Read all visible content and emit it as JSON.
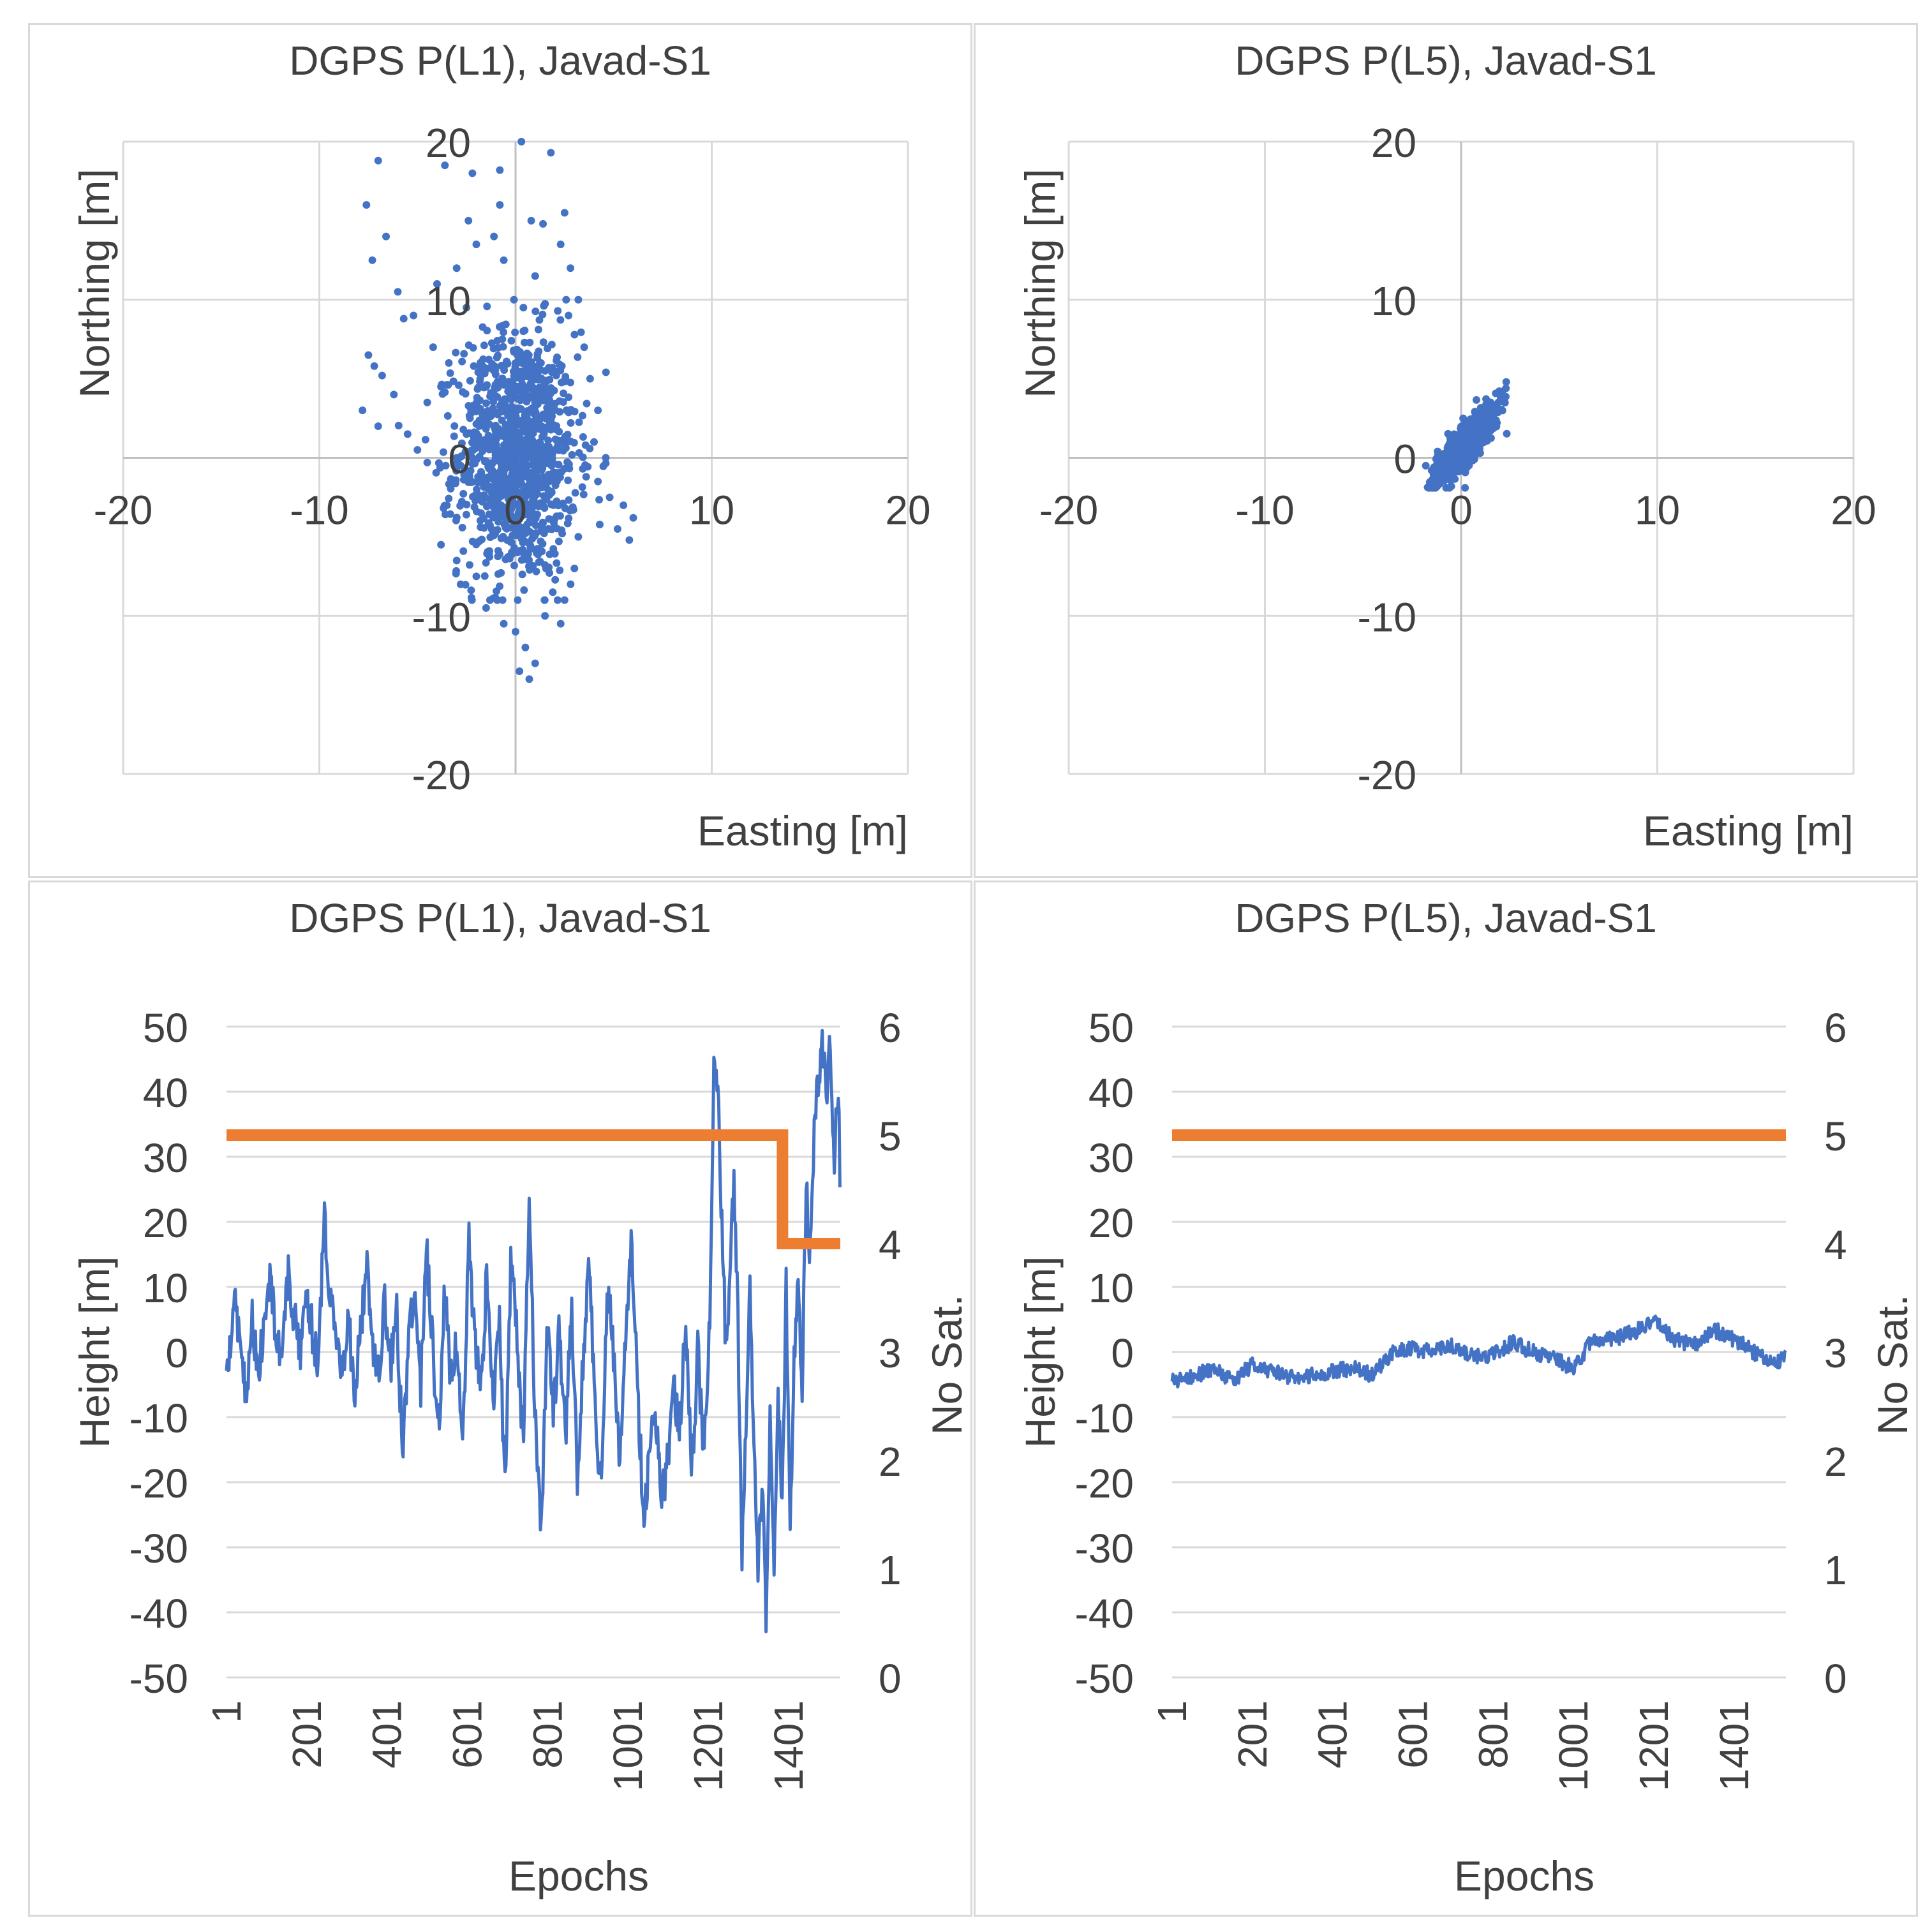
{
  "colors": {
    "series": "#4472c4",
    "satellites": "#ed7d31",
    "grid": "#d9d9d9",
    "axis": "#bfbfbf",
    "text": "#404040"
  },
  "chart_data": [
    {
      "type": "scatter",
      "title": "DGPS P(L1), Javad-S1",
      "xlabel": "Easting [m]",
      "ylabel": "Northing [m]",
      "xlim": [
        -20,
        20
      ],
      "ylim": [
        -20,
        20
      ],
      "xticks": [
        "-20",
        "-10",
        "0",
        "10",
        "20"
      ],
      "yticks": [
        "-20",
        "-10",
        "0",
        "10",
        "20"
      ],
      "grid": true,
      "points": [
        [
          -7.6,
          16.0
        ],
        [
          -7.0,
          18.8
        ],
        [
          -7.3,
          12.5
        ],
        [
          -6.6,
          14.0
        ],
        [
          -6.0,
          10.5
        ],
        [
          -5.7,
          8.8
        ],
        [
          -5.2,
          9.0
        ],
        [
          -7.5,
          6.5
        ],
        [
          -7.2,
          5.8
        ],
        [
          -6.8,
          5.2
        ],
        [
          -6.2,
          4.0
        ],
        [
          -7.8,
          3.0
        ],
        [
          -7.0,
          2.0
        ],
        [
          -5.5,
          1.5
        ],
        [
          -5.0,
          0.5
        ],
        [
          -4.5,
          -0.3
        ],
        [
          -4.2,
          7.0
        ],
        [
          -4.0,
          11.0
        ],
        [
          -3.6,
          18.5
        ],
        [
          -2.2,
          18.0
        ],
        [
          -0.8,
          18.2
        ],
        [
          0.3,
          20.0
        ],
        [
          1.8,
          19.3
        ],
        [
          -2.4,
          15.0
        ],
        [
          -2.0,
          13.5
        ],
        [
          -1.1,
          14.0
        ],
        [
          -0.8,
          16.0
        ],
        [
          0.8,
          15.0
        ],
        [
          1.4,
          14.8
        ],
        [
          2.5,
          15.5
        ],
        [
          2.3,
          13.5
        ],
        [
          2.8,
          12.0
        ],
        [
          3.2,
          10.0
        ],
        [
          -3.0,
          12.0
        ],
        [
          -2.5,
          9.5
        ],
        [
          2.7,
          9.0
        ],
        [
          3.5,
          7.0
        ],
        [
          3.8,
          5.0
        ],
        [
          4.2,
          3.0
        ],
        [
          -3.4,
          6.0
        ],
        [
          -3.8,
          4.5
        ],
        [
          -4.5,
          3.5
        ],
        [
          4.0,
          1.0
        ],
        [
          4.6,
          0.0
        ],
        [
          4.2,
          -1.5
        ],
        [
          4.8,
          -2.5
        ],
        [
          5.5,
          -3.0
        ],
        [
          6.0,
          -3.8
        ],
        [
          5.2,
          -4.5
        ],
        [
          5.8,
          -5.2
        ],
        [
          -3.5,
          -3.0
        ],
        [
          -3.8,
          -5.5
        ],
        [
          -3.0,
          -6.5
        ],
        [
          -2.8,
          -8.0
        ],
        [
          3.2,
          -5.0
        ],
        [
          3.0,
          -7.0
        ],
        [
          2.5,
          -9.0
        ],
        [
          2.3,
          -10.5
        ],
        [
          -1.5,
          -9.5
        ],
        [
          0.0,
          -11.0
        ],
        [
          0.5,
          -12.0
        ],
        [
          0.2,
          -13.5
        ],
        [
          0.7,
          -14.0
        ],
        [
          1.0,
          -13.0
        ],
        [
          -0.6,
          -10.5
        ],
        [
          1.5,
          -10.0
        ],
        [
          1.9,
          -8.5
        ],
        [
          -2.0,
          -7.5
        ],
        [
          -2.5,
          1.5
        ],
        [
          -3.0,
          0.0
        ],
        [
          2.0,
          2.0
        ],
        [
          1.5,
          5.5
        ],
        [
          -1.8,
          5.0
        ],
        [
          0.4,
          9.5
        ],
        [
          -0.6,
          12.5
        ],
        [
          1.0,
          11.5
        ],
        [
          3.6,
          -1.2
        ]
      ],
      "cluster": {
        "n": 1150,
        "x_mean": 0.1,
        "x_sd": 1.5,
        "y_mean": 0.2,
        "y_sd": 3.9,
        "y_min": -9.0,
        "y_max": 10.0
      }
    },
    {
      "type": "scatter",
      "title": "DGPS P(L5), Javad-S1",
      "xlabel": "Easting [m]",
      "ylabel": "Northing [m]",
      "xlim": [
        -20,
        20
      ],
      "ylim": [
        -20,
        20
      ],
      "xticks": [
        "-20",
        "-10",
        "0",
        "10",
        "20"
      ],
      "yticks": [
        "-20",
        "-10",
        "0",
        "10",
        "20"
      ],
      "grid": true,
      "points": [
        [
          -1.8,
          -0.5
        ],
        [
          -1.5,
          -0.8
        ],
        [
          2.3,
          4.8
        ],
        [
          2.1,
          4.2
        ],
        [
          -0.5,
          -1.8
        ],
        [
          0.2,
          -1.9
        ],
        [
          1.9,
          3.5
        ],
        [
          -1.2,
          0.4
        ]
      ],
      "cluster": {
        "n": 900,
        "along_corr": 0.85,
        "x_mean": 0.3,
        "x_sd": 0.75,
        "y_mean": 0.9,
        "y_sd": 1.15,
        "x_min": -1.8,
        "x_max": 2.4,
        "y_min": -1.9,
        "y_max": 4.8
      }
    },
    {
      "type": "line",
      "title": "DGPS P(L1), Javad-S1",
      "xlabel": "Epochs",
      "ylabel": "Height [m]",
      "y2label": "No Sat.",
      "ylim": [
        -50,
        50
      ],
      "y2lim": [
        0,
        6
      ],
      "n_epochs": 1530,
      "xticks": [
        "1",
        "201",
        "401",
        "601",
        "801",
        "1001",
        "1201",
        "1401"
      ],
      "yticks": [
        "50",
        "40",
        "30",
        "20",
        "10",
        "0",
        "-10",
        "-20",
        "-30",
        "-40",
        "-50"
      ],
      "y2ticks": [
        "6",
        "5",
        "4",
        "3",
        "2",
        "1",
        "0"
      ],
      "grid": true,
      "series": [
        {
          "axis": "left",
          "epochs": [
            1,
            20,
            35,
            50,
            65,
            80,
            95,
            110,
            125,
            140,
            155,
            170,
            185,
            200,
            215,
            230,
            245,
            260,
            275,
            290,
            305,
            320,
            335,
            350,
            365,
            380,
            395,
            410,
            425,
            440,
            455,
            470,
            485,
            500,
            515,
            530,
            545,
            560,
            575,
            590,
            605,
            620,
            635,
            650,
            665,
            680,
            695,
            710,
            725,
            740,
            755,
            770,
            785,
            800,
            815,
            830,
            845,
            860,
            875,
            890,
            905,
            920,
            935,
            950,
            965,
            980,
            995,
            1010,
            1025,
            1040,
            1055,
            1070,
            1085,
            1100,
            1115,
            1130,
            1145,
            1160,
            1175,
            1190,
            1205,
            1215,
            1225,
            1235,
            1245,
            1255,
            1265,
            1275,
            1285,
            1295,
            1305,
            1315,
            1325,
            1335,
            1345,
            1355,
            1365,
            1375,
            1385,
            1395,
            1405,
            1415,
            1425,
            1435,
            1445,
            1455,
            1465,
            1475,
            1485,
            1495,
            1505,
            1515,
            1525,
            1530
          ],
          "values": [
            -5,
            8,
            2,
            -6,
            5,
            -3,
            4,
            11,
            2,
            -1,
            12,
            5,
            0,
            10,
            3,
            -2,
            21,
            8,
            2,
            -2,
            5,
            -6,
            3,
            14,
            2,
            -4,
            8,
            -2,
            6,
            -16,
            2,
            12,
            -5,
            15,
            0,
            -12,
            10,
            -5,
            3,
            -14,
            18,
            1,
            -6,
            13,
            -9,
            6,
            -21,
            15,
            2,
            -14,
            23,
            -10,
            -28,
            5,
            -10,
            3,
            -14,
            8,
            -20,
            0,
            14,
            -9,
            -22,
            10,
            0,
            -18,
            2,
            18,
            -5,
            -26,
            -15,
            -9,
            -22,
            -17,
            -5,
            -12,
            5,
            -20,
            0,
            -15,
            5,
            43,
            40,
            20,
            0,
            10,
            27,
            5,
            -30,
            -10,
            10,
            -15,
            -35,
            -20,
            -40,
            -10,
            -32,
            -5,
            -25,
            10,
            -28,
            0,
            10,
            -5,
            25,
            15,
            35,
            42,
            49,
            38,
            48,
            30,
            42,
            25
          ]
        },
        {
          "axis": "right",
          "name": "No Sat.",
          "epochs": [
            1,
            1386,
            1386,
            1420,
            1420,
            1530
          ],
          "values": [
            5,
            5,
            4,
            4,
            4,
            4
          ]
        }
      ]
    },
    {
      "type": "line",
      "title": "DGPS P(L5), Javad-S1",
      "xlabel": "Epochs",
      "ylabel": "Height [m]",
      "y2label": "No Sat.",
      "ylim": [
        -50,
        50
      ],
      "y2lim": [
        0,
        6
      ],
      "n_epochs": 1530,
      "xticks": [
        "1",
        "201",
        "401",
        "601",
        "801",
        "1001",
        "1201",
        "1401"
      ],
      "yticks": [
        "50",
        "40",
        "30",
        "20",
        "10",
        "0",
        "-10",
        "-20",
        "-30",
        "-40",
        "-50"
      ],
      "y2ticks": [
        "6",
        "5",
        "4",
        "3",
        "2",
        "1",
        "0"
      ],
      "grid": true,
      "series": [
        {
          "axis": "left",
          "epochs": [
            1,
            50,
            100,
            150,
            200,
            250,
            300,
            350,
            400,
            450,
            500,
            550,
            600,
            650,
            700,
            750,
            800,
            850,
            900,
            950,
            1000,
            1050,
            1100,
            1150,
            1200,
            1250,
            1300,
            1350,
            1400,
            1450,
            1500,
            1530
          ],
          "values": [
            -4.5,
            -4,
            -2.5,
            -4.5,
            -2,
            -3,
            -4,
            -3.5,
            -3,
            -2.5,
            -3.5,
            0,
            0.5,
            0,
            1,
            -0.5,
            -0.5,
            1.5,
            0,
            -1,
            -2.5,
            2,
            2,
            3,
            5,
            2,
            1,
            3.5,
            2,
            0,
            -2,
            -0.5
          ]
        },
        {
          "axis": "right",
          "name": "No Sat.",
          "epochs": [
            1,
            1530
          ],
          "values": [
            5,
            5
          ]
        }
      ]
    }
  ]
}
